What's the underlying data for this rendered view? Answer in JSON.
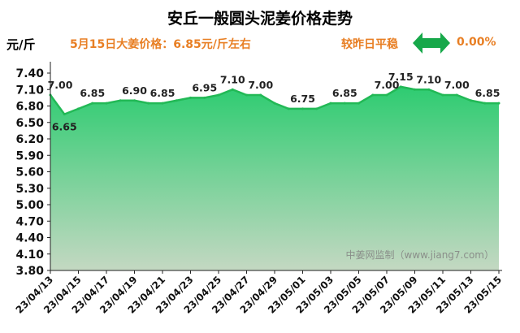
{
  "header": {
    "title": "安丘一般圆头泥姜价格走势",
    "unit": "元/斤",
    "price_text": "5月15日大姜价格：6.85元/斤左右",
    "compare_text": "较昨日平稳",
    "change_pct": "0.00%",
    "arrow_icon": "double-arrow-icon"
  },
  "chart_data": {
    "type": "area",
    "title": "安丘一般圆头泥姜价格走势",
    "ylabel": "元/斤",
    "xlabel": "",
    "ylim": [
      3.8,
      7.4
    ],
    "yticks": [
      "7.40",
      "7.10",
      "6.80",
      "6.50",
      "6.20",
      "5.90",
      "5.60",
      "5.30",
      "5.00",
      "4.70",
      "4.40",
      "4.10",
      "3.80"
    ],
    "x": [
      "23/04/13",
      "23/04/14",
      "23/04/15",
      "23/04/16",
      "23/04/17",
      "23/04/18",
      "23/04/19",
      "23/04/20",
      "23/04/21",
      "23/04/22",
      "23/04/23",
      "23/04/24",
      "23/04/25",
      "23/04/26",
      "23/04/27",
      "23/04/28",
      "23/04/29",
      "23/04/30",
      "23/05/01",
      "23/05/02",
      "23/05/03",
      "23/05/04",
      "23/05/05",
      "23/05/06",
      "23/05/07",
      "23/05/08",
      "23/05/09",
      "23/05/10",
      "23/05/11",
      "23/05/12",
      "23/05/13",
      "23/05/14",
      "23/05/15"
    ],
    "xtick_labels": [
      "23/04/13",
      "23/04/15",
      "23/04/17",
      "23/04/19",
      "23/04/21",
      "23/04/23",
      "23/04/25",
      "23/04/27",
      "23/04/29",
      "23/05/01",
      "23/05/03",
      "23/05/05",
      "23/05/07",
      "23/05/09",
      "23/05/11",
      "23/05/13",
      "23/05/15"
    ],
    "series": [
      {
        "name": "安丘一般圆头泥姜",
        "values": [
          7.0,
          6.65,
          6.75,
          6.85,
          6.85,
          6.9,
          6.9,
          6.85,
          6.85,
          6.9,
          6.95,
          6.95,
          7.0,
          7.1,
          7.0,
          7.0,
          6.85,
          6.75,
          6.75,
          6.75,
          6.85,
          6.85,
          6.85,
          7.0,
          7.0,
          7.15,
          7.1,
          7.1,
          7.0,
          7.0,
          6.9,
          6.85,
          6.85
        ]
      }
    ],
    "point_labels": [
      {
        "index": 0,
        "text": "7.00"
      },
      {
        "index": 1,
        "text": "6.65"
      },
      {
        "index": 3,
        "text": "6.85"
      },
      {
        "index": 6,
        "text": "6.90"
      },
      {
        "index": 8,
        "text": "6.85"
      },
      {
        "index": 11,
        "text": "6.95"
      },
      {
        "index": 13,
        "text": "7.10"
      },
      {
        "index": 15,
        "text": "7.00"
      },
      {
        "index": 18,
        "text": "6.75"
      },
      {
        "index": 21,
        "text": "6.85"
      },
      {
        "index": 24,
        "text": "7.00"
      },
      {
        "index": 25,
        "text": "7.15"
      },
      {
        "index": 27,
        "text": "7.10"
      },
      {
        "index": 29,
        "text": "7.00"
      },
      {
        "index": 32,
        "text": "6.85"
      }
    ],
    "watermark": "中姜网监制（www.jiang7.com）",
    "colors": {
      "line": "#22b956",
      "area_top": "#2ecc71",
      "area_bottom": "#c4d8c2",
      "axis": "#222222"
    }
  }
}
